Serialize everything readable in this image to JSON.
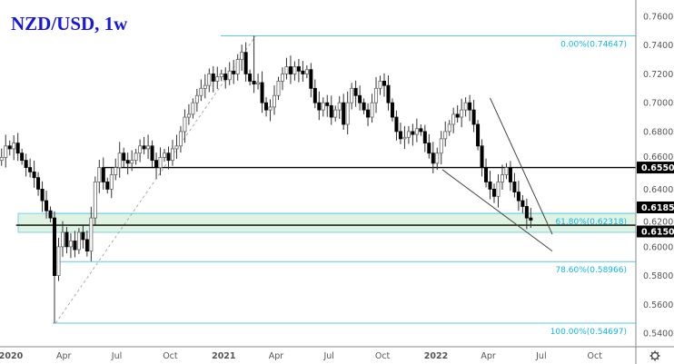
{
  "chart_data": {
    "type": "candlestick",
    "title": "NZD/USD, 1w",
    "frequency": "1w",
    "first_candle": "2019-12-02",
    "closes": [
      0.655,
      0.66,
      0.662,
      0.67,
      0.668,
      0.672,
      0.665,
      0.66,
      0.655,
      0.652,
      0.648,
      0.64,
      0.632,
      0.625,
      0.62,
      0.58,
      0.6,
      0.61,
      0.6,
      0.604,
      0.598,
      0.61,
      0.605,
      0.597,
      0.62,
      0.645,
      0.655,
      0.645,
      0.64,
      0.65,
      0.655,
      0.665,
      0.66,
      0.658,
      0.66,
      0.665,
      0.67,
      0.668,
      0.67,
      0.66,
      0.655,
      0.662,
      0.665,
      0.66,
      0.668,
      0.67,
      0.68,
      0.69,
      0.692,
      0.7,
      0.705,
      0.71,
      0.712,
      0.72,
      0.715,
      0.718,
      0.72,
      0.716,
      0.722,
      0.72,
      0.73,
      0.735,
      0.72,
      0.715,
      0.713,
      0.714,
      0.7,
      0.695,
      0.697,
      0.705,
      0.715,
      0.72,
      0.725,
      0.72,
      0.725,
      0.722,
      0.72,
      0.723,
      0.71,
      0.7,
      0.695,
      0.7,
      0.698,
      0.69,
      0.695,
      0.7,
      0.685,
      0.7,
      0.71,
      0.705,
      0.7,
      0.695,
      0.69,
      0.7,
      0.71,
      0.715,
      0.712,
      0.7,
      0.69,
      0.68,
      0.675,
      0.676,
      0.68,
      0.678,
      0.682,
      0.68,
      0.672,
      0.665,
      0.658,
      0.665,
      0.675,
      0.68,
      0.685,
      0.692,
      0.69,
      0.695,
      0.7,
      0.695,
      0.685,
      0.67,
      0.655,
      0.645,
      0.64,
      0.635,
      0.645,
      0.65,
      0.655,
      0.645,
      0.638,
      0.632,
      0.628,
      0.62,
      0.6185
    ],
    "swing_low": {
      "date": "2020-03-18",
      "price": 0.54697
    },
    "swing_high": {
      "date": "2021-02-25",
      "price": 0.74647
    },
    "fib_levels": [
      {
        "label": "0.00%(0.74647)",
        "price": 0.74647
      },
      {
        "label": "61.80%(0.62318)",
        "price": 0.62318
      },
      {
        "label": "78.60%(0.58966)",
        "price": 0.58966
      },
      {
        "label": "100.00%(0.54697)",
        "price": 0.54697
      }
    ],
    "support_zone": {
      "from": 0.61,
      "to": 0.62318,
      "color": "#dff3e3"
    },
    "horizontal_lines": [
      {
        "price": 0.655,
        "label": "0.65500",
        "start": "2020-06-10"
      },
      {
        "price": 0.615,
        "label": "0.61500",
        "start": "2020-01-10"
      }
    ],
    "trendlines": [
      {
        "from": {
          "date": "2022-04-04",
          "price": 0.7033
        },
        "to": {
          "date": "2022-07-20",
          "price": 0.6087
        }
      },
      {
        "from": {
          "date": "2022-01-12",
          "price": 0.6535
        },
        "to": {
          "date": "2022-07-20",
          "price": 0.597
        }
      }
    ],
    "last_price": {
      "label": "0.61851",
      "price": 0.61851
    },
    "y_axis": {
      "range": [
        0.531,
        0.771
      ],
      "ticks": [
        "0.76000",
        "0.74000",
        "0.72000",
        "0.70000",
        "0.68000",
        "0.66000",
        "0.64000",
        "0.62000",
        "0.60000",
        "0.58000",
        "0.56000",
        "0.54000"
      ]
    },
    "x_axis": {
      "ticks": [
        {
          "label": "2020",
          "date": "2020-01-01",
          "bold": true
        },
        {
          "label": "Apr",
          "date": "2020-04-01"
        },
        {
          "label": "Jul",
          "date": "2020-07-01"
        },
        {
          "label": "Oct",
          "date": "2020-10-01"
        },
        {
          "label": "2021",
          "date": "2021-01-01",
          "bold": true
        },
        {
          "label": "Apr",
          "date": "2021-04-01"
        },
        {
          "label": "Jul",
          "date": "2021-07-01"
        },
        {
          "label": "Oct",
          "date": "2021-10-01"
        },
        {
          "label": "2022",
          "date": "2022-01-01",
          "bold": true
        },
        {
          "label": "Apr",
          "date": "2022-04-01"
        },
        {
          "label": "Jul",
          "date": "2022-07-01"
        },
        {
          "label": "Oct",
          "date": "2022-10-01"
        }
      ]
    },
    "colors": {
      "up": "#ffffff",
      "down": "#000000",
      "fib": "#5bc8ef",
      "fib_text": "#12b5e6",
      "title": "#1616e6"
    },
    "grid": false
  },
  "ui": {
    "settings_icon": "gear-icon"
  }
}
